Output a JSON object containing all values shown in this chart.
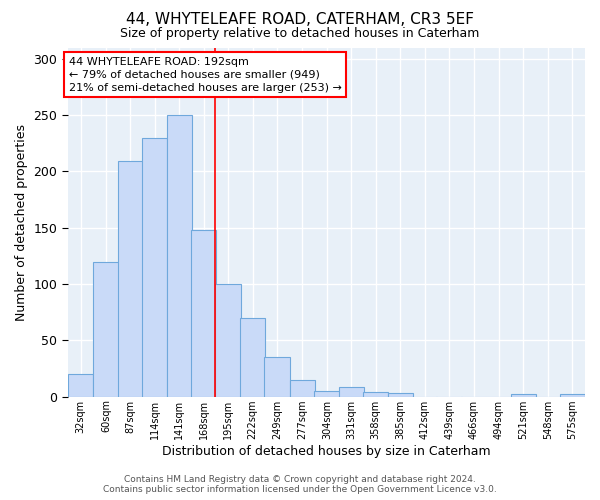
{
  "title1": "44, WHYTELEAFE ROAD, CATERHAM, CR3 5EF",
  "title2": "Size of property relative to detached houses in Caterham",
  "xlabel": "Distribution of detached houses by size in Caterham",
  "ylabel": "Number of detached properties",
  "bar_labels": [
    "32sqm",
    "60sqm",
    "87sqm",
    "114sqm",
    "141sqm",
    "168sqm",
    "195sqm",
    "222sqm",
    "249sqm",
    "277sqm",
    "304sqm",
    "331sqm",
    "358sqm",
    "385sqm",
    "412sqm",
    "439sqm",
    "466sqm",
    "494sqm",
    "521sqm",
    "548sqm",
    "575sqm"
  ],
  "bar_values": [
    20,
    120,
    209,
    230,
    250,
    148,
    100,
    70,
    35,
    15,
    5,
    9,
    4,
    3,
    0,
    0,
    0,
    0,
    2,
    0,
    2
  ],
  "bar_color": "#c9daf8",
  "bar_edge_color": "#6fa8dc",
  "bg_color": "#e8f0f8",
  "annotation_text": "44 WHYTELEAFE ROAD: 192sqm\n← 79% of detached houses are smaller (949)\n21% of semi-detached houses are larger (253) →",
  "annotation_box_color": "white",
  "annotation_box_edge_color": "red",
  "red_line_x": 195,
  "ylim": [
    0,
    310
  ],
  "yticks": [
    0,
    50,
    100,
    150,
    200,
    250,
    300
  ],
  "grid_color": "#c8d8e8",
  "footer_text": "Contains HM Land Registry data © Crown copyright and database right 2024.\nContains public sector information licensed under the Open Government Licence v3.0."
}
